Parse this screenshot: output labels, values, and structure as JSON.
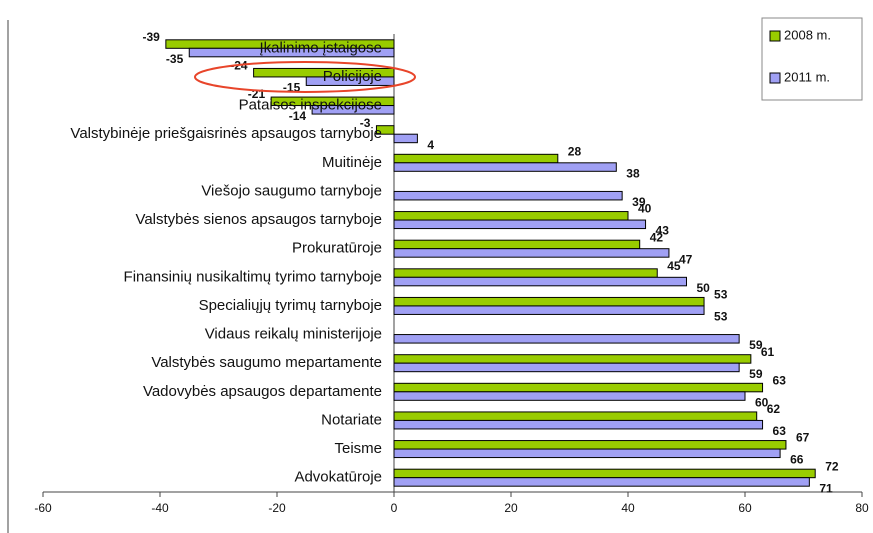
{
  "chart_data": {
    "type": "bar",
    "orientation": "horizontal",
    "categories": [
      "Įkalinimo įstaigose",
      "Policijoje",
      "Pataisos inspekcijose",
      "Valstybinėje priešgaisrinės apsaugos tarnyboje",
      "Muitinėje",
      "Viešojo saugumo tarnyboje",
      "Valstybės sienos apsaugos tarnyboje",
      "Prokuratūroje",
      "Finansinių nusikaltimų tyrimo tarnyboje",
      "Specialiųjų tyrimų tarnyboje",
      "Vidaus reikalų ministerijoje",
      "Valstybės saugumo mepartamente",
      "Vadovybės apsaugos departamente",
      "Notariate",
      "Teisme",
      "Advokatūroje"
    ],
    "series": [
      {
        "name": "2008 m.",
        "color": "#99cc00",
        "values": [
          -39,
          -24,
          -21,
          -3,
          28,
          null,
          40,
          42,
          45,
          53,
          null,
          61,
          63,
          62,
          67,
          72
        ]
      },
      {
        "name": "2011 m.",
        "color": "#a0a0f4",
        "values": [
          -35,
          -15,
          -14,
          4,
          38,
          39,
          43,
          47,
          50,
          53,
          59,
          59,
          60,
          63,
          66,
          71
        ]
      }
    ],
    "xlim": [
      -60,
      80
    ],
    "xticks": [
      -60,
      -40,
      -20,
      0,
      20,
      40,
      60,
      80
    ],
    "legend": "top-right"
  }
}
